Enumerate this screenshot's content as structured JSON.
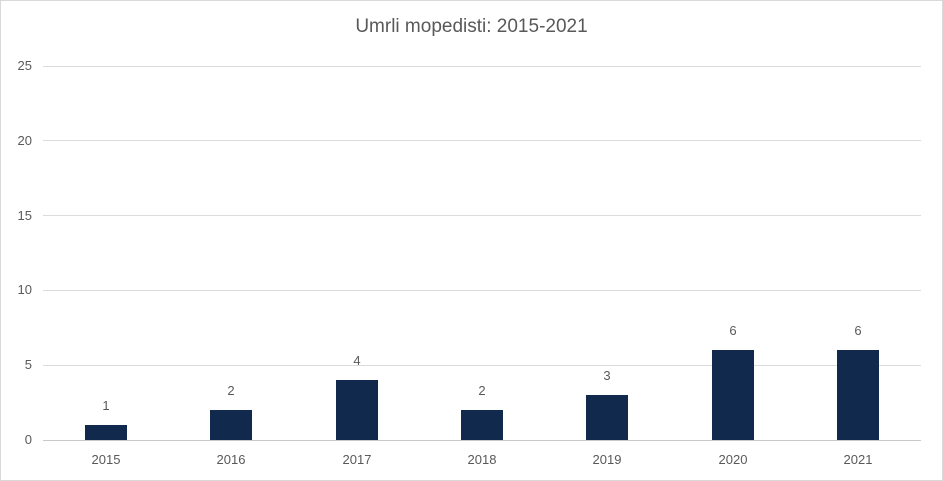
{
  "chart_data": {
    "type": "bar",
    "title": "Umrli mopedisti: 2015-2021",
    "categories": [
      "2015",
      "2016",
      "2017",
      "2018",
      "2019",
      "2020",
      "2021"
    ],
    "values": [
      1,
      2,
      4,
      2,
      3,
      6,
      6
    ],
    "data_labels": [
      1,
      2,
      4,
      2,
      3,
      6,
      6
    ],
    "xlabel": "",
    "ylabel": "",
    "ylim": [
      0,
      25
    ],
    "yticks": [
      0,
      5,
      10,
      15,
      20,
      25
    ],
    "grid": "horizontal",
    "legend": "none",
    "colors": {
      "bar": "#12294E",
      "gridline": "#DCDCDC",
      "axis_line": "#C9C9C9",
      "label_text": "#595959",
      "title_text": "#595959",
      "background": "#FFFFFF",
      "border": "#D9D9D9"
    }
  }
}
